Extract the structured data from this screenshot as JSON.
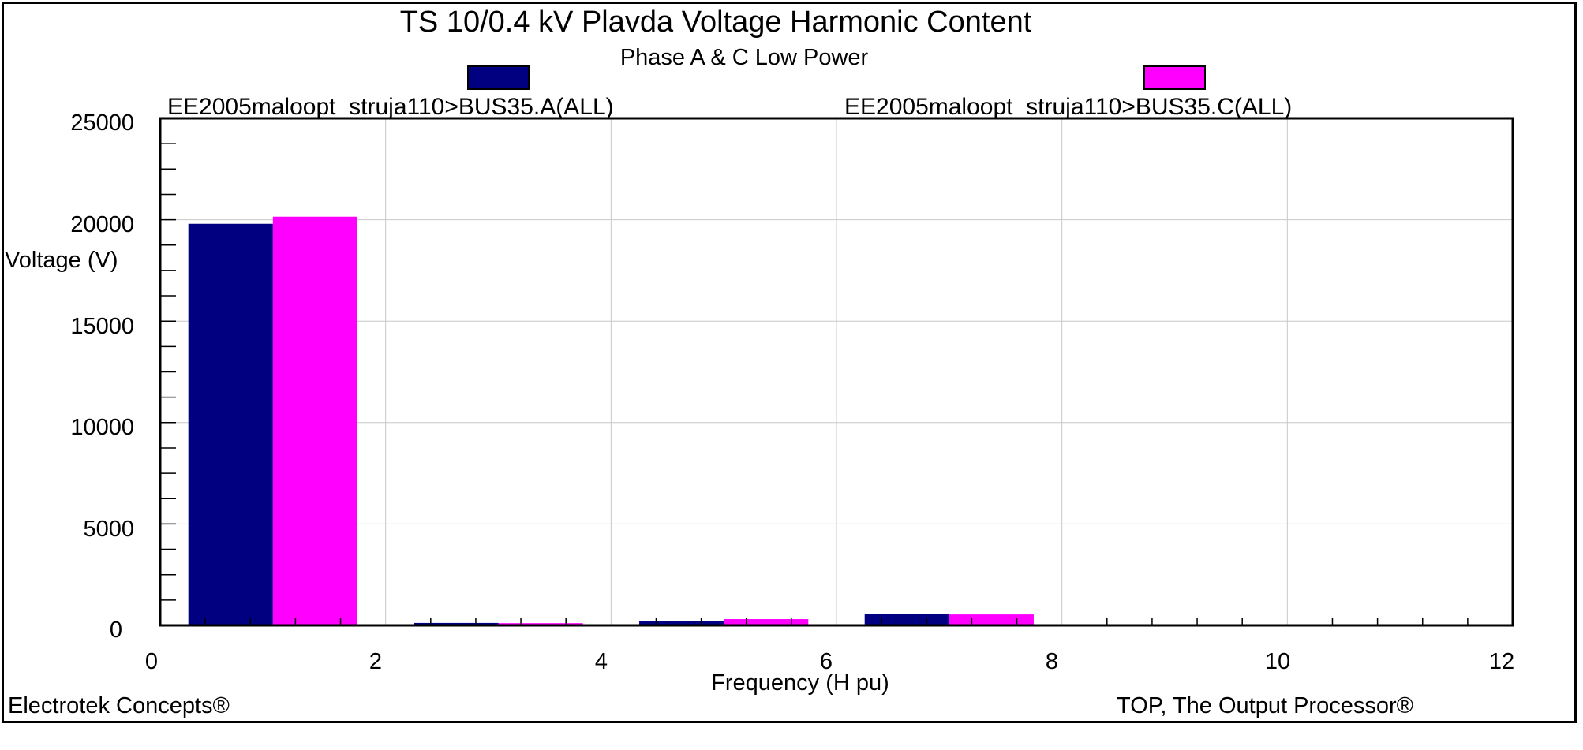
{
  "chart_data": {
    "type": "bar",
    "title": "TS 10/0.4 kV Plavda Voltage Harmonic Content",
    "subtitle": "Phase A & C Low Power",
    "xlabel": "Frequency (H pu)",
    "ylabel": "Voltage (V)",
    "xlim": [
      0,
      12
    ],
    "ylim": [
      0,
      25000
    ],
    "x_ticks": [
      "0",
      "2",
      "4",
      "6",
      "8",
      "10",
      "12"
    ],
    "y_ticks": [
      "0",
      "5000",
      "10000",
      "15000",
      "20000",
      "25000"
    ],
    "grid": true,
    "legend_placement": "top",
    "categories": [
      1,
      3,
      5,
      7
    ],
    "series": [
      {
        "name": "EE2005maloopt_struja110>BUS35.A(ALL)",
        "color": "#000080",
        "values": [
          19800,
          120,
          230,
          580
        ]
      },
      {
        "name": "EE2005maloopt_struja110>BUS35.C(ALL)",
        "color": "#ff00ff",
        "values": [
          20150,
          110,
          310,
          540
        ]
      }
    ]
  },
  "footer": {
    "left": "Electrotek Concepts®",
    "right": "TOP, The Output Processor®"
  }
}
